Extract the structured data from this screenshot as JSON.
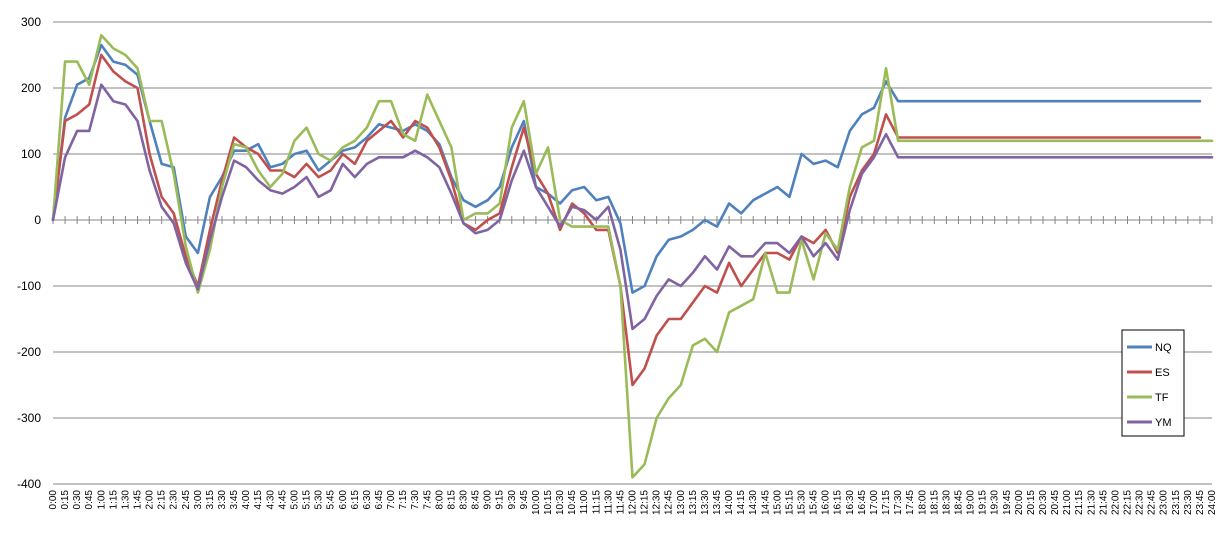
{
  "chart_data": {
    "type": "line",
    "title": "",
    "xlabel": "",
    "ylabel": "",
    "ylim": [
      -400,
      300
    ],
    "y_ticks": [
      300,
      200,
      100,
      0,
      -100,
      -200,
      -300,
      -400
    ],
    "grid": "horizontal",
    "legend_position": "right",
    "x_categories": [
      "0:00",
      "0:15",
      "0:30",
      "0:45",
      "1:00",
      "1:15",
      "1:30",
      "1:45",
      "2:00",
      "2:15",
      "2:30",
      "2:45",
      "3:00",
      "3:15",
      "3:30",
      "3:45",
      "4:00",
      "4:15",
      "4:30",
      "4:45",
      "5:00",
      "5:15",
      "5:30",
      "5:45",
      "6:00",
      "6:15",
      "6:30",
      "6:45",
      "7:00",
      "7:15",
      "7:30",
      "7:45",
      "8:00",
      "8:15",
      "8:30",
      "8:45",
      "9:00",
      "9:15",
      "9:30",
      "9:45",
      "10:00",
      "10:15",
      "10:30",
      "10:45",
      "11:00",
      "11:15",
      "11:30",
      "11:45",
      "12:00",
      "12:15",
      "12:30",
      "12:45",
      "13:00",
      "13:15",
      "13:30",
      "13:45",
      "14:00",
      "14:15",
      "14:30",
      "14:45",
      "15:00",
      "15:15",
      "15:30",
      "15:45",
      "16:00",
      "16:15",
      "16:30",
      "16:45",
      "17:00",
      "17:15",
      "17:30",
      "17:45",
      "18:00",
      "18:15",
      "18:30",
      "18:45",
      "19:00",
      "19:15",
      "19:30",
      "19:45",
      "20:00",
      "20:15",
      "20:30",
      "20:45",
      "21:00",
      "21:15",
      "21:30",
      "21:45",
      "22:00",
      "22:15",
      "22:30",
      "22:45",
      "23:00",
      "23:15",
      "23:30",
      "23:45",
      "24:00"
    ],
    "series": [
      {
        "name": "NQ",
        "color": "#4F81BD",
        "values": [
          0,
          155,
          205,
          215,
          265,
          240,
          235,
          220,
          150,
          85,
          80,
          -25,
          -50,
          35,
          65,
          105,
          105,
          115,
          80,
          85,
          100,
          105,
          75,
          90,
          105,
          110,
          125,
          145,
          140,
          135,
          145,
          135,
          115,
          65,
          30,
          20,
          30,
          50,
          110,
          150,
          50,
          40,
          25,
          45,
          50,
          30,
          35,
          -5,
          -110,
          -100,
          -55,
          -30,
          -25,
          -15,
          0,
          -10,
          25,
          10,
          30,
          40,
          50,
          35,
          100,
          85,
          90,
          80,
          135,
          160,
          170,
          210,
          180,
          180,
          180,
          180,
          180,
          180,
          180,
          180,
          180,
          180,
          180,
          180,
          180,
          180,
          180,
          180,
          180,
          180,
          180,
          180,
          180,
          180,
          180,
          180,
          180,
          180
        ]
      },
      {
        "name": "ES",
        "color": "#C0504D",
        "values": [
          0,
          150,
          160,
          175,
          250,
          225,
          210,
          200,
          100,
          35,
          10,
          -55,
          -100,
          -15,
          60,
          125,
          110,
          100,
          75,
          75,
          65,
          85,
          65,
          75,
          100,
          85,
          120,
          135,
          150,
          125,
          150,
          140,
          110,
          60,
          -5,
          -15,
          0,
          10,
          80,
          140,
          70,
          40,
          -15,
          25,
          10,
          -15,
          -15,
          -100,
          -250,
          -225,
          -175,
          -150,
          -150,
          -125,
          -100,
          -110,
          -65,
          -100,
          -75,
          -50,
          -50,
          -60,
          -25,
          -35,
          -15,
          -50,
          35,
          75,
          100,
          160,
          125,
          125,
          125,
          125,
          125,
          125,
          125,
          125,
          125,
          125,
          125,
          125,
          125,
          125,
          125,
          125,
          125,
          125,
          125,
          125,
          125,
          125,
          125,
          125,
          125,
          125
        ]
      },
      {
        "name": "TF",
        "color": "#9BBB59",
        "values": [
          0,
          240,
          240,
          205,
          280,
          260,
          250,
          230,
          150,
          150,
          70,
          -40,
          -110,
          -45,
          50,
          115,
          110,
          75,
          50,
          70,
          120,
          140,
          100,
          90,
          110,
          120,
          140,
          180,
          180,
          130,
          120,
          190,
          150,
          110,
          0,
          10,
          10,
          25,
          140,
          180,
          70,
          110,
          0,
          -10,
          -10,
          -10,
          -10,
          -100,
          -390,
          -370,
          -300,
          -270,
          -250,
          -190,
          -180,
          -200,
          -140,
          -130,
          -120,
          -50,
          -110,
          -110,
          -30,
          -90,
          -20,
          -45,
          50,
          110,
          120,
          230,
          120,
          120,
          120,
          120,
          120,
          120,
          120,
          120,
          120,
          120,
          120,
          120,
          120,
          120,
          120,
          120,
          120,
          120,
          120,
          120,
          120,
          120,
          120,
          120,
          120,
          120,
          120
        ]
      },
      {
        "name": "YM",
        "color": "#8064A2",
        "values": [
          0,
          95,
          135,
          135,
          205,
          180,
          175,
          150,
          75,
          20,
          -5,
          -65,
          -105,
          -30,
          35,
          90,
          80,
          60,
          45,
          40,
          50,
          65,
          35,
          45,
          85,
          65,
          85,
          95,
          95,
          95,
          105,
          95,
          80,
          40,
          -5,
          -20,
          -15,
          0,
          60,
          105,
          50,
          20,
          -10,
          20,
          15,
          0,
          20,
          -45,
          -165,
          -150,
          -115,
          -90,
          -100,
          -80,
          -55,
          -75,
          -40,
          -55,
          -55,
          -35,
          -35,
          -50,
          -25,
          -55,
          -35,
          -60,
          15,
          70,
          95,
          130,
          95,
          95,
          95,
          95,
          95,
          95,
          95,
          95,
          95,
          95,
          95,
          95,
          95,
          95,
          95,
          95,
          95,
          95,
          95,
          95,
          95,
          95,
          95,
          95,
          95,
          95,
          95
        ]
      }
    ]
  }
}
